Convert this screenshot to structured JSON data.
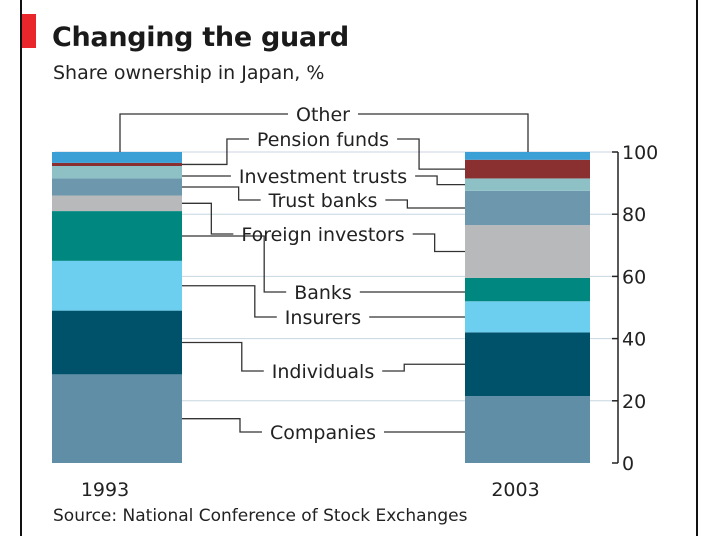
{
  "header": {
    "title": "Changing the guard",
    "subtitle": "Share ownership in Japan, %"
  },
  "footer": {
    "source": "Source: National Conference of Stock Exchanges"
  },
  "colors": {
    "accent": "#e8262b",
    "Companies": "#5f8ea6",
    "Individuals": "#00526b",
    "Insurers": "#6dcff0",
    "Banks": "#00877f",
    "Foreign investors": "#b8b9ba",
    "Trust banks": "#6d97ad",
    "Investment trusts": "#8ec1c5",
    "Pension funds": "#8a3030",
    "Other": "#3aa0d6",
    "gridline": "#c8d6df",
    "leader": "#333333"
  },
  "chart_data": {
    "type": "bar",
    "stacked": true,
    "title": "Changing the guard",
    "subtitle": "Share ownership in Japan, %",
    "categories": [
      "1993",
      "2003"
    ],
    "ylim": [
      0,
      100
    ],
    "yticks": [
      "0",
      "20",
      "40",
      "60",
      "80",
      "100"
    ],
    "series": [
      {
        "name": "Companies",
        "values": [
          28.5,
          21.5
        ]
      },
      {
        "name": "Individuals",
        "values": [
          20.5,
          20.5
        ]
      },
      {
        "name": "Insurers",
        "values": [
          16,
          10
        ]
      },
      {
        "name": "Banks",
        "values": [
          16,
          7.5
        ]
      },
      {
        "name": "Foreign investors",
        "values": [
          5,
          17
        ]
      },
      {
        "name": "Trust banks",
        "values": [
          5.5,
          11
        ]
      },
      {
        "name": "Investment trusts",
        "values": [
          4,
          4
        ]
      },
      {
        "name": "Pension funds",
        "values": [
          1,
          6
        ]
      },
      {
        "name": "Other",
        "values": [
          3.5,
          2.5
        ]
      }
    ],
    "source": "Source: National Conference of Stock Exchanges"
  }
}
